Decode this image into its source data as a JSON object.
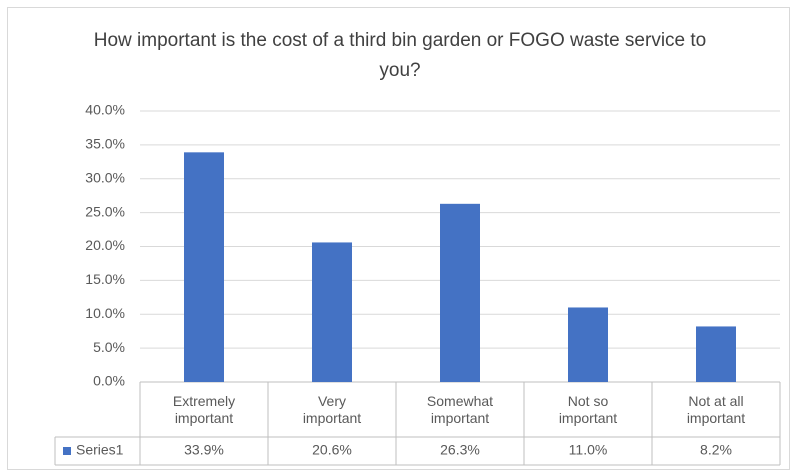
{
  "chart_data": {
    "type": "bar",
    "title": "How important is the cost of a third bin garden or FOGO waste service to you?",
    "categories": [
      "Extremely important",
      "Very important",
      "Somewhat important",
      "Not so important",
      "Not at all important"
    ],
    "series": [
      {
        "name": "Series1",
        "color": "#4472c4",
        "values": [
          33.9,
          20.6,
          26.3,
          11.0,
          8.2
        ],
        "value_labels": [
          "33.9%",
          "20.6%",
          "26.3%",
          "11.0%",
          "8.2%"
        ]
      }
    ],
    "ylim": [
      0,
      40
    ],
    "yticks": [
      {
        "value": 0,
        "label": "0.0%"
      },
      {
        "value": 5,
        "label": "5.0%"
      },
      {
        "value": 10,
        "label": "10.0%"
      },
      {
        "value": 15,
        "label": "15.0%"
      },
      {
        "value": 20,
        "label": "20.0%"
      },
      {
        "value": 25,
        "label": "25.0%"
      },
      {
        "value": 30,
        "label": "30.0%"
      },
      {
        "value": 35,
        "label": "35.0%"
      },
      {
        "value": 40,
        "label": "40.0%"
      }
    ],
    "grid": true
  }
}
